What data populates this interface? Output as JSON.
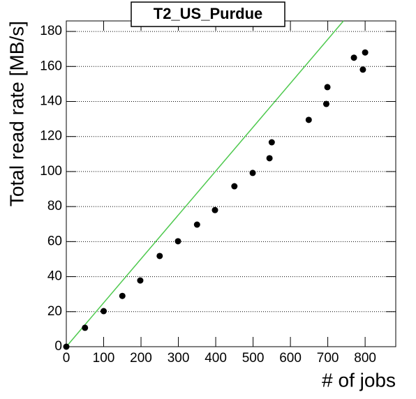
{
  "chart_data": {
    "type": "scatter",
    "title": "T2_US_Purdue",
    "x_label": "# of jobs",
    "y_label": "Total read rate [MB/s]",
    "x": [
      0,
      50,
      100,
      150,
      198,
      250,
      299,
      350,
      398,
      450,
      499,
      544,
      550,
      649,
      696,
      699,
      770,
      794,
      800
    ],
    "values": [
      0,
      10.8,
      20.3,
      29,
      37.8,
      51.8,
      60.2,
      69.7,
      78,
      91.6,
      99.2,
      107.6,
      116.7,
      129.5,
      138.6,
      148.2,
      165,
      158.2,
      168
    ],
    "color": "#000000",
    "line": {
      "x": [
        0,
        742
      ],
      "values": [
        0,
        186
      ],
      "color": "#4ec94e"
    },
    "xlim": [
      0,
      882
    ],
    "ylim": [
      0,
      186
    ],
    "xticks": [
      0,
      100,
      200,
      300,
      400,
      500,
      600,
      700,
      800
    ],
    "yticks": [
      0,
      20,
      40,
      60,
      80,
      100,
      120,
      140,
      160,
      180
    ],
    "grid": true
  }
}
